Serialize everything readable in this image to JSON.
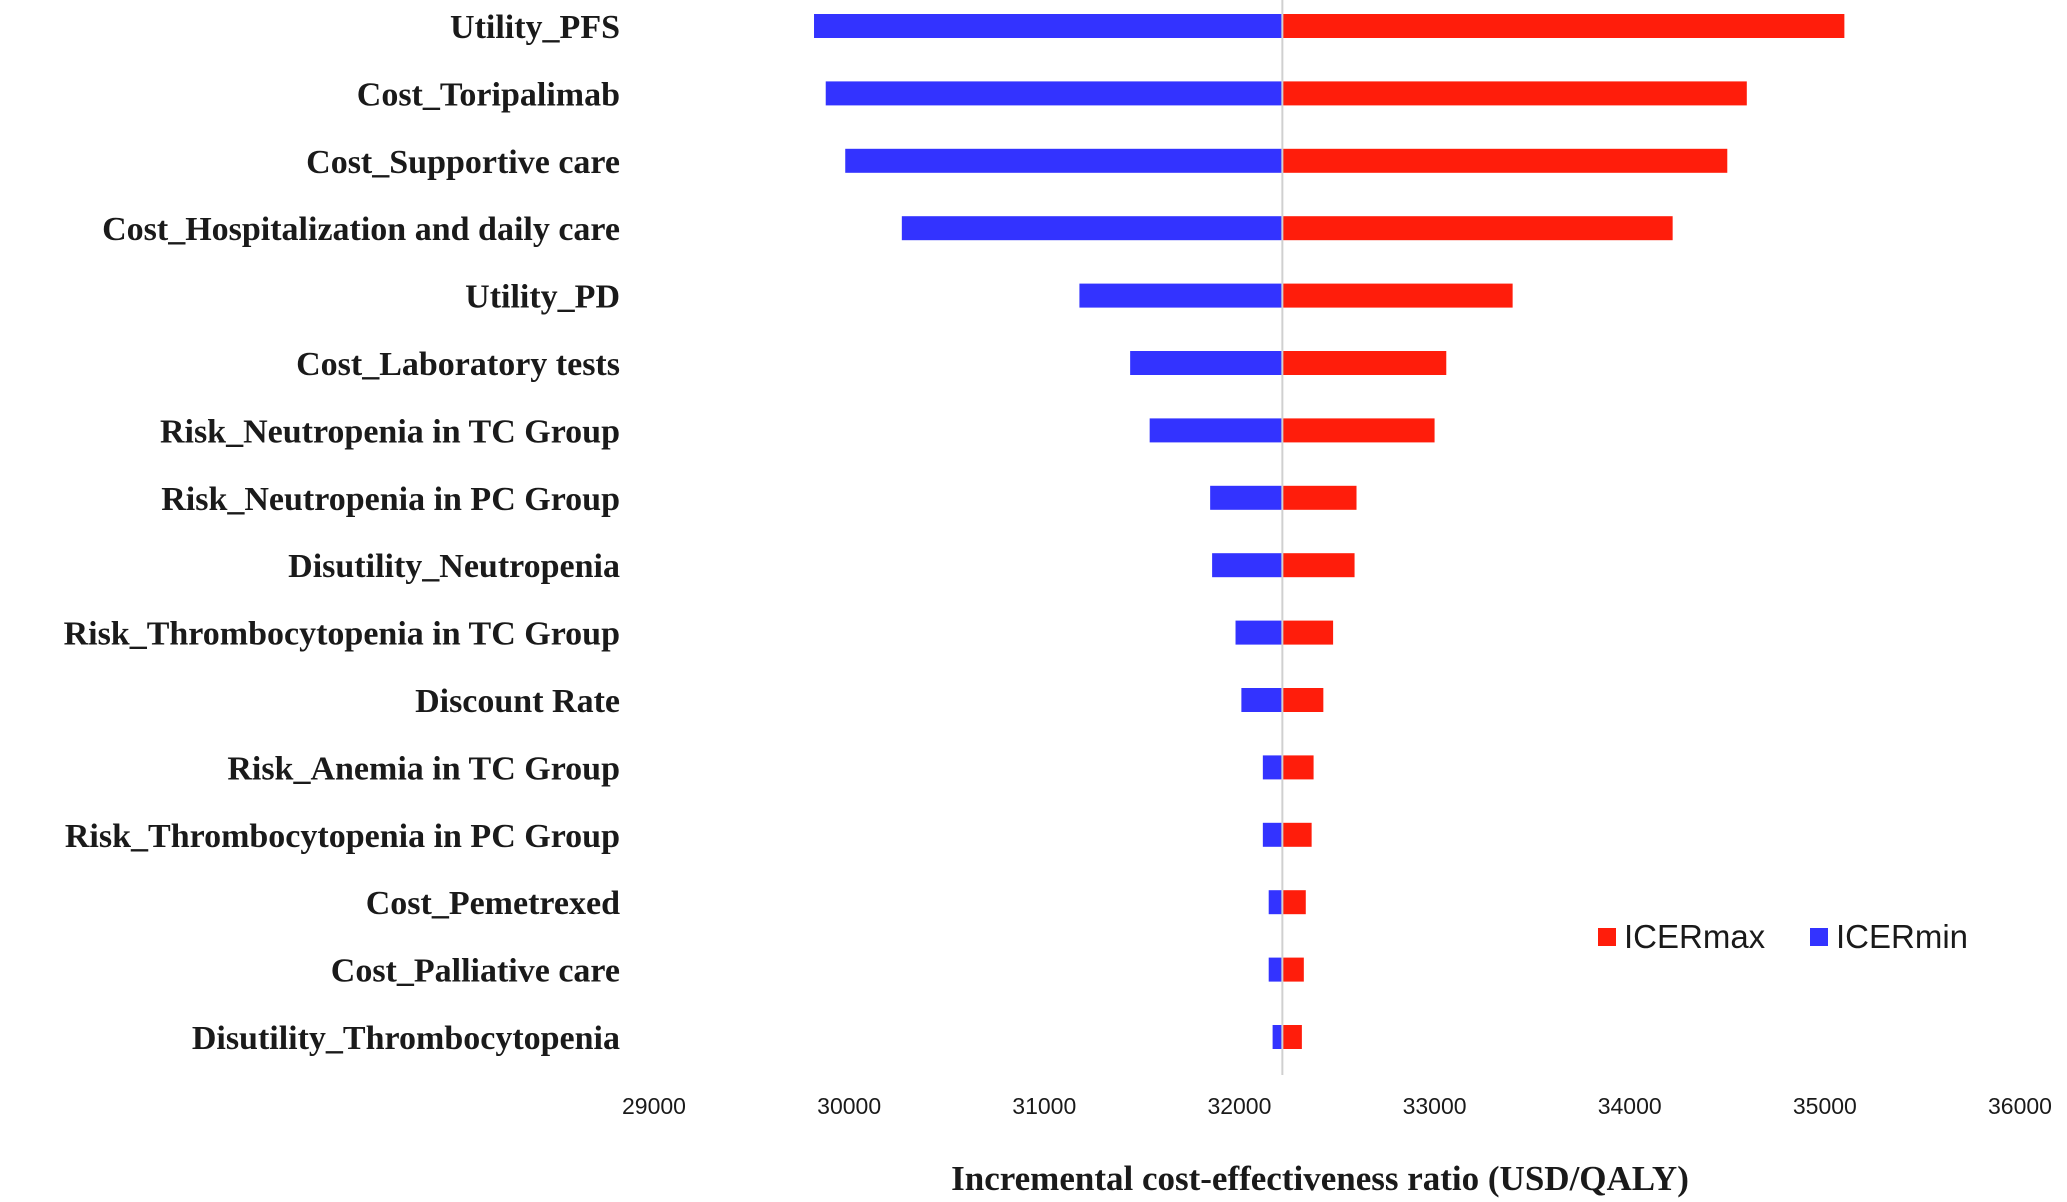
{
  "chart_data": {
    "type": "bar",
    "subtype": "tornado",
    "title": "",
    "xlabel": "Incremental cost-effectiveness ratio (USD/QALY)",
    "ylabel": "",
    "xlim": [
      29000,
      36000
    ],
    "xticks": [
      29000,
      30000,
      31000,
      32000,
      33000,
      34000,
      35000,
      36000
    ],
    "base_value": 32220,
    "legend_position": "bottom-right",
    "categories": [
      "Utility_PFS",
      "Cost_Toripalimab",
      "Cost_Supportive care",
      "Cost_Hospitalization and daily care",
      "Utility_PD",
      "Cost_Laboratory tests ",
      "Risk_Neutropenia in TC Group",
      "Risk_Neutropenia in PC Group",
      "Disutility_Neutropenia",
      "Risk_Thrombocytopenia in TC Group",
      "Discount Rate",
      "Risk_Anemia in TC Group",
      "Risk_Thrombocytopenia in PC Group",
      "Cost_Pemetrexed",
      "Cost_Palliative care",
      "Disutility_Thrombocytopenia"
    ],
    "series": [
      {
        "name": "ICERmax",
        "color": "#ff1d0b",
        "values": [
          35100,
          34600,
          34500,
          34220,
          33400,
          33060,
          33000,
          32600,
          32590,
          32480,
          32430,
          32380,
          32370,
          32340,
          32330,
          32320
        ]
      },
      {
        "name": "ICERmin",
        "color": "#3333ff",
        "values": [
          29820,
          29880,
          29980,
          30270,
          31180,
          31440,
          31540,
          31850,
          31860,
          31980,
          32010,
          32120,
          32120,
          32150,
          32150,
          32170
        ]
      }
    ]
  }
}
